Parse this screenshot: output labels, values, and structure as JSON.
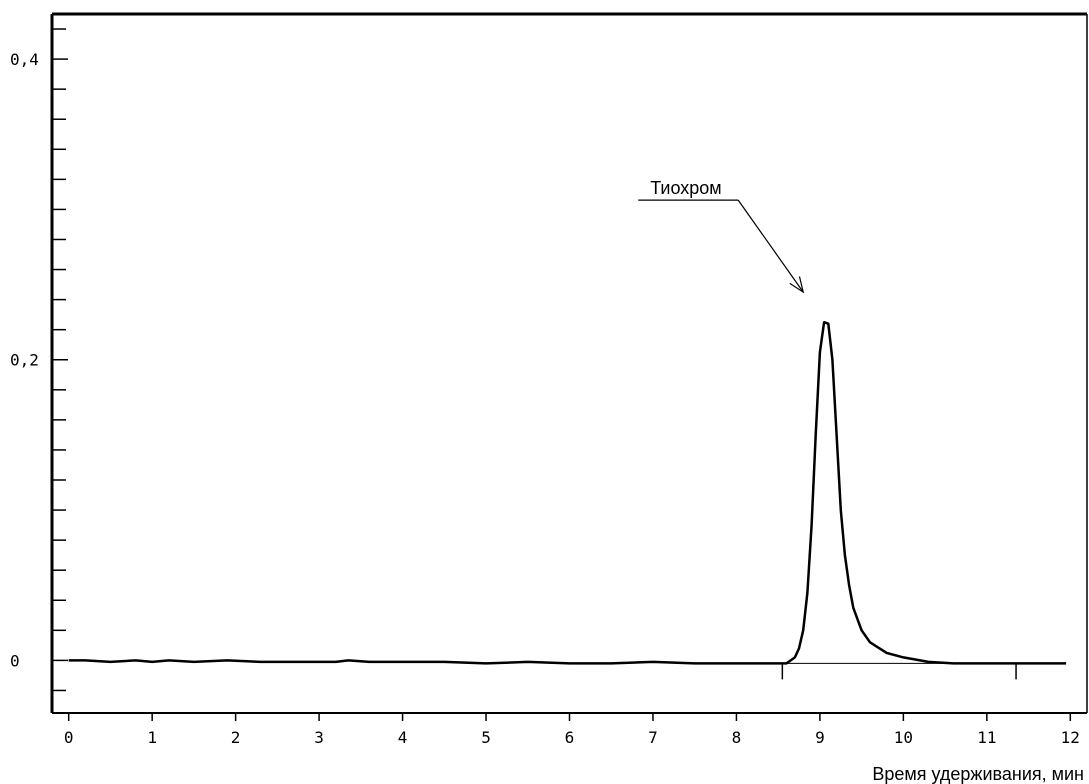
{
  "chart_data": {
    "type": "line",
    "title": "",
    "xlabel": "Время удерживания, мин",
    "ylabel": "",
    "xlim": [
      -0.2,
      12.2
    ],
    "ylim": [
      -0.035,
      0.43
    ],
    "x_ticks": [
      0,
      1,
      2,
      3,
      4,
      5,
      6,
      7,
      8,
      9,
      10,
      11,
      12
    ],
    "x_tick_labels": [
      "0",
      "1",
      "2",
      "3",
      "4",
      "5",
      "6",
      "7",
      "8",
      "9",
      "10",
      "11",
      "12"
    ],
    "y_ticks_labeled": [
      0,
      0.2,
      0.4
    ],
    "y_tick_labels": [
      "0",
      "0,2",
      "0,4"
    ],
    "y_minor_step": 0.02,
    "grid": false,
    "legend": "none",
    "series": [
      {
        "x": [
          0,
          0.2,
          0.5,
          0.8,
          1.0,
          1.2,
          1.5,
          1.9,
          2.3,
          2.8,
          3.2,
          3.35,
          3.6,
          4.0,
          4.5,
          5.0,
          5.5,
          6.0,
          6.5,
          7.0,
          7.5,
          8.0,
          8.5,
          8.6,
          8.7,
          8.75,
          8.8,
          8.85,
          8.9,
          8.95,
          9.0,
          9.05,
          9.1,
          9.15,
          9.2,
          9.25,
          9.3,
          9.35,
          9.4,
          9.5,
          9.6,
          9.8,
          10.0,
          10.3,
          10.6,
          11.0,
          11.4,
          11.8,
          11.95
        ],
        "y": [
          0,
          0,
          -0.001,
          0,
          -0.001,
          0,
          -0.001,
          0,
          -0.001,
          -0.001,
          -0.001,
          0,
          -0.001,
          -0.001,
          -0.001,
          -0.002,
          -0.001,
          -0.002,
          -0.002,
          -0.001,
          -0.002,
          -0.002,
          -0.002,
          -0.002,
          0.002,
          0.008,
          0.02,
          0.045,
          0.09,
          0.15,
          0.205,
          0.225,
          0.224,
          0.2,
          0.15,
          0.1,
          0.07,
          0.05,
          0.035,
          0.02,
          0.012,
          0.005,
          0.002,
          -0.001,
          -0.002,
          -0.002,
          -0.002,
          -0.002,
          -0.002
        ]
      }
    ],
    "baseline": {
      "from_x": 8.55,
      "to_x": 11.35,
      "y": -0.002
    },
    "annotation": {
      "text": "Тиохром",
      "x": 8.8,
      "y": 0.245
    }
  }
}
